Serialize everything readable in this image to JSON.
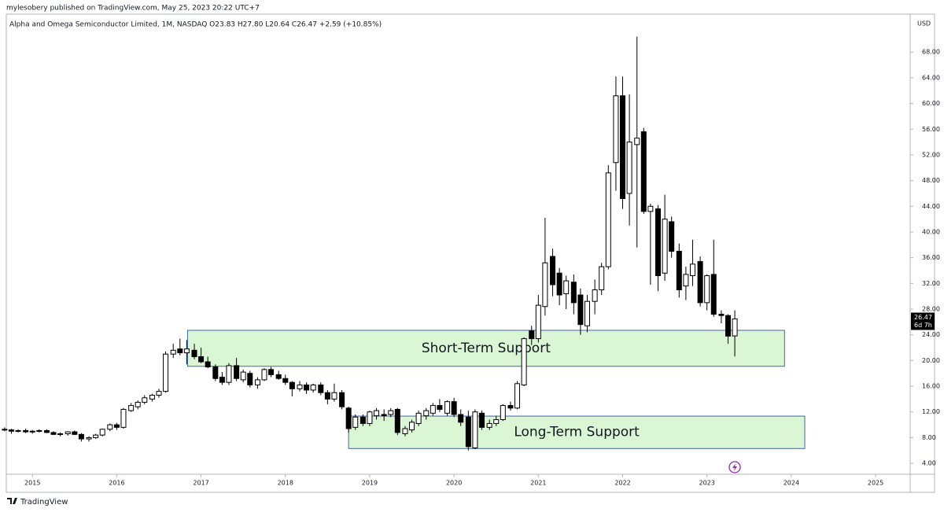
{
  "header": "mylesobery published on TradingView.com, May 25, 2023 20:22 UTC+7",
  "footer": "TradingView",
  "chart_data": {
    "type": "candlestick",
    "title": "Alpha and Omega Semiconductor Limited, 1M, NASDAQ  O23.83  H27.80  L20.64  C26.47  +2.59 (+10.85%)",
    "y_axis_label": "USD",
    "countdown": "6d 7h",
    "up_color": "#ffffff",
    "down_color": "#000000",
    "edge_color": "#000000",
    "grid": false,
    "x": [
      2014.67,
      2014.75,
      2014.83,
      2014.92,
      2015.0,
      2015.08,
      2015.17,
      2015.25,
      2015.33,
      2015.42,
      2015.5,
      2015.58,
      2015.67,
      2015.75,
      2015.83,
      2015.92,
      2016.0,
      2016.08,
      2016.17,
      2016.25,
      2016.33,
      2016.42,
      2016.5,
      2016.58,
      2016.67,
      2016.75,
      2016.83,
      2016.92,
      2017.0,
      2017.08,
      2017.17,
      2017.25,
      2017.33,
      2017.42,
      2017.5,
      2017.58,
      2017.67,
      2017.75,
      2017.83,
      2017.92,
      2018.0,
      2018.08,
      2018.17,
      2018.25,
      2018.33,
      2018.42,
      2018.5,
      2018.58,
      2018.67,
      2018.75,
      2018.83,
      2018.92,
      2019.0,
      2019.08,
      2019.17,
      2019.25,
      2019.33,
      2019.42,
      2019.5,
      2019.58,
      2019.67,
      2019.75,
      2019.83,
      2019.92,
      2020.0,
      2020.08,
      2020.17,
      2020.25,
      2020.33,
      2020.42,
      2020.5,
      2020.58,
      2020.67,
      2020.75,
      2020.83,
      2020.92,
      2021.0,
      2021.08,
      2021.17,
      2021.25,
      2021.33,
      2021.42,
      2021.5,
      2021.58,
      2021.67,
      2021.75,
      2021.83,
      2021.92,
      2022.0,
      2022.08,
      2022.17,
      2022.25,
      2022.33,
      2022.42,
      2022.5,
      2022.58,
      2022.67,
      2022.75,
      2022.83,
      2022.92,
      2023.0,
      2023.08,
      2023.17,
      2023.25,
      2023.33
    ],
    "open": [
      9.3,
      9.2,
      9.0,
      9.1,
      8.9,
      9.0,
      9.1,
      8.8,
      8.5,
      8.6,
      8.9,
      8.5,
      7.8,
      8.0,
      8.4,
      9.3,
      10.0,
      9.6,
      12.2,
      12.8,
      13.5,
      14.0,
      14.6,
      15.2,
      21.0,
      21.8,
      21.2,
      21.6,
      20.6,
      19.8,
      19.0,
      17.4,
      16.6,
      19.2,
      17.0,
      18.0,
      16.2,
      17.0,
      18.6,
      17.8,
      17.2,
      16.6,
      15.6,
      16.2,
      15.4,
      16.2,
      15.0,
      14.0,
      15.0,
      12.6,
      9.6,
      11.2,
      10.2,
      11.4,
      11.6,
      11.6,
      12.4,
      8.6,
      9.2,
      10.2,
      11.4,
      11.8,
      13.0,
      11.8,
      13.6,
      11.6,
      11.2,
      6.4,
      11.8,
      9.6,
      10.2,
      10.8,
      13.0,
      12.6,
      16.2,
      24.6,
      23.4,
      28.4,
      36.2,
      33.6,
      30.4,
      32.2,
      30.2,
      25.4,
      29.2,
      31.0,
      34.6,
      50.8,
      61.2,
      46.0,
      53.6,
      55.6,
      43.2,
      43.6,
      33.6,
      41.6,
      37.0,
      31.6,
      33.2,
      35.4,
      29.0,
      33.4,
      27.2,
      27.0,
      23.83
    ],
    "high": [
      9.6,
      9.4,
      9.3,
      9.4,
      9.2,
      9.3,
      9.3,
      9.0,
      8.8,
      9.0,
      9.1,
      8.7,
      8.2,
      8.6,
      9.4,
      10.2,
      10.3,
      12.6,
      13.4,
      13.8,
      14.6,
      14.8,
      15.6,
      21.4,
      22.6,
      23.4,
      23.2,
      22.6,
      22.0,
      20.6,
      19.4,
      18.2,
      19.6,
      20.4,
      18.6,
      18.4,
      17.4,
      18.8,
      19.0,
      18.4,
      17.8,
      16.8,
      16.8,
      16.6,
      16.4,
      16.6,
      15.4,
      16.4,
      15.4,
      12.8,
      11.6,
      11.6,
      12.2,
      12.6,
      12.4,
      12.6,
      12.6,
      9.8,
      10.8,
      12.2,
      12.6,
      13.4,
      14.0,
      13.8,
      14.2,
      12.4,
      12.2,
      12.4,
      12.2,
      10.8,
      11.4,
      13.2,
      13.6,
      16.8,
      23.6,
      25.4,
      30.2,
      42.2,
      37.4,
      34.4,
      33.2,
      33.4,
      31.2,
      30.2,
      32.6,
      35.2,
      50.4,
      64.2,
      64.2,
      61.4,
      70.4,
      56.2,
      44.4,
      44.2,
      45.8,
      42.4,
      38.2,
      34.6,
      38.8,
      36.2,
      33.4,
      38.8,
      27.8,
      27.2,
      27.8
    ],
    "low": [
      9.0,
      8.6,
      8.8,
      8.7,
      8.6,
      8.8,
      8.7,
      8.4,
      8.2,
      8.3,
      8.4,
      7.4,
      7.4,
      7.8,
      8.2,
      9.0,
      9.2,
      9.4,
      12.0,
      12.4,
      13.2,
      13.6,
      14.2,
      15.0,
      20.4,
      20.8,
      19.4,
      20.2,
      19.6,
      18.8,
      16.8,
      16.2,
      16.2,
      16.8,
      16.6,
      15.8,
      15.6,
      16.8,
      17.4,
      17.0,
      16.2,
      14.4,
      15.2,
      14.8,
      15.0,
      14.6,
      13.2,
      13.6,
      12.4,
      8.8,
      9.2,
      9.8,
      9.8,
      10.8,
      10.6,
      11.2,
      8.4,
      8.2,
      8.8,
      9.8,
      10.8,
      11.4,
      12.0,
      11.4,
      11.2,
      9.8,
      6.0,
      6.2,
      9.2,
      9.2,
      9.8,
      10.6,
      12.2,
      12.4,
      16.0,
      22.4,
      22.8,
      27.0,
      30.0,
      28.6,
      28.0,
      27.2,
      24.0,
      24.4,
      27.2,
      30.2,
      34.2,
      46.4,
      43.6,
      41.0,
      37.6,
      42.8,
      31.8,
      30.8,
      32.4,
      36.0,
      29.8,
      29.4,
      31.6,
      28.4,
      27.8,
      26.8,
      25.8,
      22.6,
      20.64
    ],
    "close": [
      9.2,
      9.0,
      9.1,
      8.9,
      9.0,
      9.1,
      8.8,
      8.5,
      8.6,
      8.9,
      8.5,
      7.8,
      8.0,
      8.4,
      9.3,
      10.0,
      9.6,
      12.4,
      13.0,
      13.5,
      14.2,
      14.6,
      15.2,
      21.0,
      21.6,
      21.2,
      21.8,
      20.6,
      19.8,
      19.0,
      17.2,
      16.6,
      19.2,
      17.2,
      18.2,
      16.2,
      17.0,
      18.6,
      17.8,
      17.2,
      16.6,
      15.6,
      16.2,
      15.4,
      16.2,
      15.0,
      14.0,
      15.0,
      12.8,
      9.4,
      11.2,
      10.2,
      12.0,
      12.2,
      11.4,
      12.2,
      8.8,
      9.4,
      10.4,
      11.8,
      12.2,
      13.0,
      12.4,
      13.6,
      11.6,
      10.4,
      6.6,
      12.0,
      9.6,
      10.2,
      10.8,
      13.0,
      12.6,
      16.4,
      23.4,
      23.4,
      28.6,
      35.2,
      31.8,
      30.2,
      32.4,
      29.0,
      25.6,
      29.2,
      31.0,
      34.6,
      49.2,
      61.2,
      45.2,
      54.0,
      54.6,
      43.2,
      44.0,
      33.2,
      42.0,
      37.0,
      31.0,
      33.4,
      35.0,
      29.0,
      33.2,
      27.2,
      27.0,
      23.8,
      26.47
    ],
    "zones": [
      {
        "label": "Short-Term Support",
        "low": 19.1,
        "high": 24.7,
        "x0": 2016.84,
        "x1": 2023.92
      },
      {
        "label": "Long-Term Support",
        "low": 6.3,
        "high": 11.35,
        "x0": 2018.75,
        "x1": 2024.16
      }
    ],
    "zone_fill": "#daf6d4",
    "zone_edge": "#3f6aa6",
    "xlim": [
      2014.69,
      2025.41
    ],
    "xticks": [
      2015,
      2016,
      2017,
      2018,
      2019,
      2020,
      2021,
      2022,
      2023,
      2024,
      2025
    ],
    "ylim": [
      2.3,
      73.9
    ],
    "yticks": [
      {
        "value": 4,
        "label": "4.00"
      },
      {
        "value": 8,
        "label": "8.00"
      },
      {
        "value": 12,
        "label": "12.00"
      },
      {
        "value": 16,
        "label": "16.00"
      },
      {
        "value": 20,
        "label": "20.00"
      },
      {
        "value": 24,
        "label": "24.00"
      },
      {
        "value": 28,
        "label": "28.00"
      },
      {
        "value": 32,
        "label": "32.00"
      },
      {
        "value": 36,
        "label": "36.00"
      },
      {
        "value": 40,
        "label": "40.00"
      },
      {
        "value": 44,
        "label": "44.00"
      },
      {
        "value": 48,
        "label": "48.00"
      },
      {
        "value": 52,
        "label": "52.00"
      },
      {
        "value": 56,
        "label": "56.00"
      },
      {
        "value": 60,
        "label": "60.00"
      },
      {
        "value": 64,
        "label": "64.00"
      },
      {
        "value": 68,
        "label": "68.00"
      }
    ]
  }
}
